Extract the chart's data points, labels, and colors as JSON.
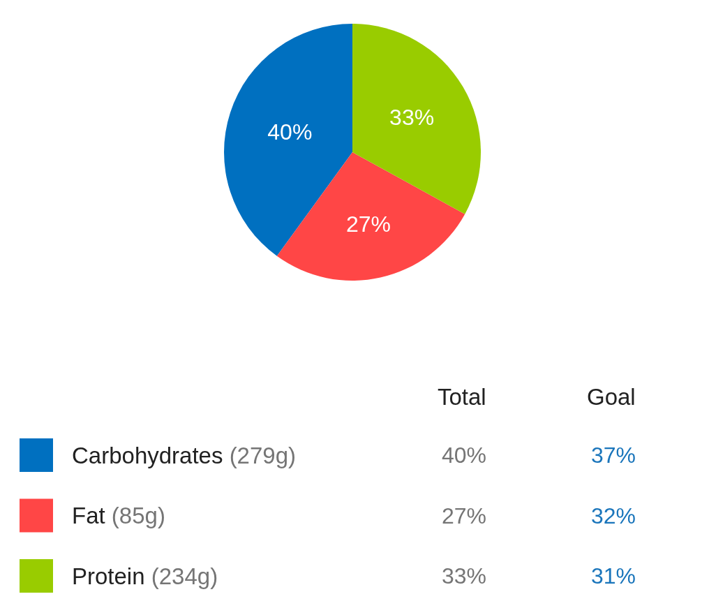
{
  "chart_data": {
    "type": "pie",
    "categories": [
      "Carbohydrates",
      "Fat",
      "Protein"
    ],
    "values": [
      40,
      27,
      33
    ],
    "colors": [
      "#0070c0",
      "#ff4646",
      "#99cc00"
    ],
    "value_labels": [
      "40%",
      "27%",
      "33%"
    ],
    "legend": "bottom",
    "annotations": [
      "Total",
      "Goal",
      "(279g)",
      "37%",
      "(85g)",
      "32%",
      "(234g)",
      "31%"
    ]
  }
}
